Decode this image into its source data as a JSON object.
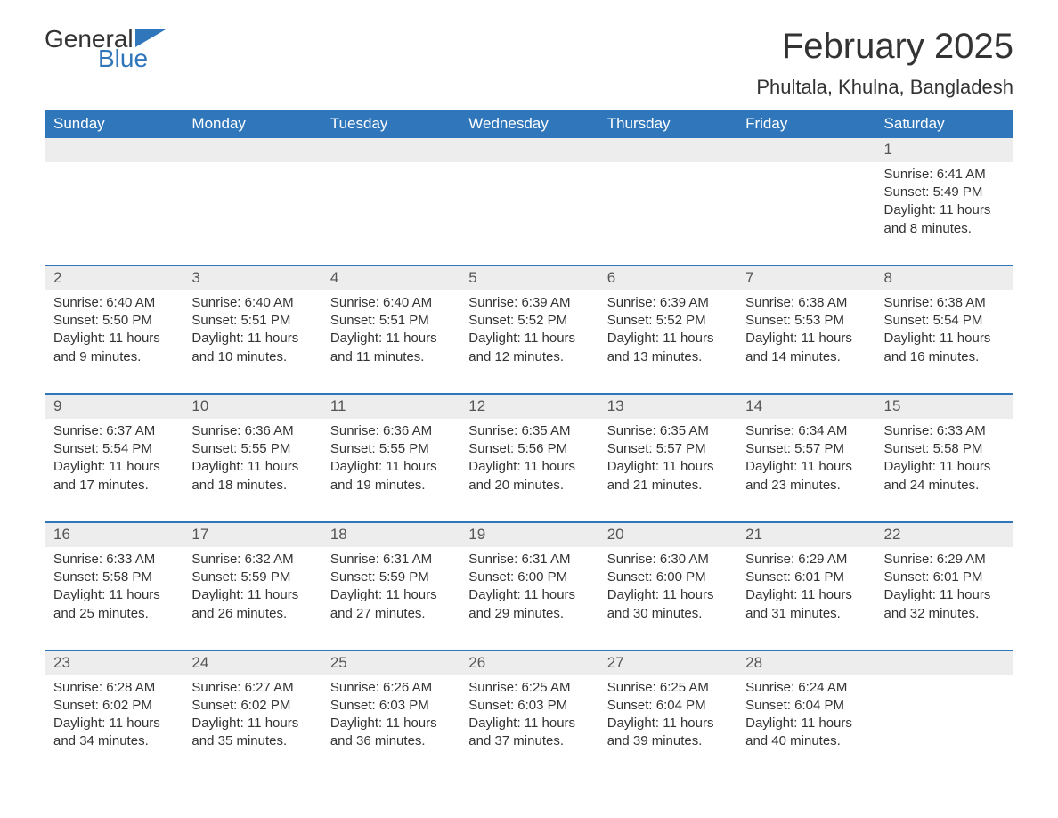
{
  "logo": {
    "text1": "General",
    "text2": "Blue",
    "flag_color": "#2f76bb"
  },
  "title": "February 2025",
  "location": "Phultala, Khulna, Bangladesh",
  "colors": {
    "header_bg": "#2f76bb",
    "header_text": "#ffffff",
    "daynum_bg": "#ededed",
    "row_border": "#2f76bb",
    "body_text": "#333333"
  },
  "typography": {
    "title_fontsize": 40,
    "location_fontsize": 22,
    "weekday_fontsize": 17,
    "cell_fontsize": 15
  },
  "weekdays": [
    "Sunday",
    "Monday",
    "Tuesday",
    "Wednesday",
    "Thursday",
    "Friday",
    "Saturday"
  ],
  "weeks": [
    [
      null,
      null,
      null,
      null,
      null,
      null,
      {
        "n": "1",
        "sunrise": "Sunrise: 6:41 AM",
        "sunset": "Sunset: 5:49 PM",
        "daylight": "Daylight: 11 hours and 8 minutes."
      }
    ],
    [
      {
        "n": "2",
        "sunrise": "Sunrise: 6:40 AM",
        "sunset": "Sunset: 5:50 PM",
        "daylight": "Daylight: 11 hours and 9 minutes."
      },
      {
        "n": "3",
        "sunrise": "Sunrise: 6:40 AM",
        "sunset": "Sunset: 5:51 PM",
        "daylight": "Daylight: 11 hours and 10 minutes."
      },
      {
        "n": "4",
        "sunrise": "Sunrise: 6:40 AM",
        "sunset": "Sunset: 5:51 PM",
        "daylight": "Daylight: 11 hours and 11 minutes."
      },
      {
        "n": "5",
        "sunrise": "Sunrise: 6:39 AM",
        "sunset": "Sunset: 5:52 PM",
        "daylight": "Daylight: 11 hours and 12 minutes."
      },
      {
        "n": "6",
        "sunrise": "Sunrise: 6:39 AM",
        "sunset": "Sunset: 5:52 PM",
        "daylight": "Daylight: 11 hours and 13 minutes."
      },
      {
        "n": "7",
        "sunrise": "Sunrise: 6:38 AM",
        "sunset": "Sunset: 5:53 PM",
        "daylight": "Daylight: 11 hours and 14 minutes."
      },
      {
        "n": "8",
        "sunrise": "Sunrise: 6:38 AM",
        "sunset": "Sunset: 5:54 PM",
        "daylight": "Daylight: 11 hours and 16 minutes."
      }
    ],
    [
      {
        "n": "9",
        "sunrise": "Sunrise: 6:37 AM",
        "sunset": "Sunset: 5:54 PM",
        "daylight": "Daylight: 11 hours and 17 minutes."
      },
      {
        "n": "10",
        "sunrise": "Sunrise: 6:36 AM",
        "sunset": "Sunset: 5:55 PM",
        "daylight": "Daylight: 11 hours and 18 minutes."
      },
      {
        "n": "11",
        "sunrise": "Sunrise: 6:36 AM",
        "sunset": "Sunset: 5:55 PM",
        "daylight": "Daylight: 11 hours and 19 minutes."
      },
      {
        "n": "12",
        "sunrise": "Sunrise: 6:35 AM",
        "sunset": "Sunset: 5:56 PM",
        "daylight": "Daylight: 11 hours and 20 minutes."
      },
      {
        "n": "13",
        "sunrise": "Sunrise: 6:35 AM",
        "sunset": "Sunset: 5:57 PM",
        "daylight": "Daylight: 11 hours and 21 minutes."
      },
      {
        "n": "14",
        "sunrise": "Sunrise: 6:34 AM",
        "sunset": "Sunset: 5:57 PM",
        "daylight": "Daylight: 11 hours and 23 minutes."
      },
      {
        "n": "15",
        "sunrise": "Sunrise: 6:33 AM",
        "sunset": "Sunset: 5:58 PM",
        "daylight": "Daylight: 11 hours and 24 minutes."
      }
    ],
    [
      {
        "n": "16",
        "sunrise": "Sunrise: 6:33 AM",
        "sunset": "Sunset: 5:58 PM",
        "daylight": "Daylight: 11 hours and 25 minutes."
      },
      {
        "n": "17",
        "sunrise": "Sunrise: 6:32 AM",
        "sunset": "Sunset: 5:59 PM",
        "daylight": "Daylight: 11 hours and 26 minutes."
      },
      {
        "n": "18",
        "sunrise": "Sunrise: 6:31 AM",
        "sunset": "Sunset: 5:59 PM",
        "daylight": "Daylight: 11 hours and 27 minutes."
      },
      {
        "n": "19",
        "sunrise": "Sunrise: 6:31 AM",
        "sunset": "Sunset: 6:00 PM",
        "daylight": "Daylight: 11 hours and 29 minutes."
      },
      {
        "n": "20",
        "sunrise": "Sunrise: 6:30 AM",
        "sunset": "Sunset: 6:00 PM",
        "daylight": "Daylight: 11 hours and 30 minutes."
      },
      {
        "n": "21",
        "sunrise": "Sunrise: 6:29 AM",
        "sunset": "Sunset: 6:01 PM",
        "daylight": "Daylight: 11 hours and 31 minutes."
      },
      {
        "n": "22",
        "sunrise": "Sunrise: 6:29 AM",
        "sunset": "Sunset: 6:01 PM",
        "daylight": "Daylight: 11 hours and 32 minutes."
      }
    ],
    [
      {
        "n": "23",
        "sunrise": "Sunrise: 6:28 AM",
        "sunset": "Sunset: 6:02 PM",
        "daylight": "Daylight: 11 hours and 34 minutes."
      },
      {
        "n": "24",
        "sunrise": "Sunrise: 6:27 AM",
        "sunset": "Sunset: 6:02 PM",
        "daylight": "Daylight: 11 hours and 35 minutes."
      },
      {
        "n": "25",
        "sunrise": "Sunrise: 6:26 AM",
        "sunset": "Sunset: 6:03 PM",
        "daylight": "Daylight: 11 hours and 36 minutes."
      },
      {
        "n": "26",
        "sunrise": "Sunrise: 6:25 AM",
        "sunset": "Sunset: 6:03 PM",
        "daylight": "Daylight: 11 hours and 37 minutes."
      },
      {
        "n": "27",
        "sunrise": "Sunrise: 6:25 AM",
        "sunset": "Sunset: 6:04 PM",
        "daylight": "Daylight: 11 hours and 39 minutes."
      },
      {
        "n": "28",
        "sunrise": "Sunrise: 6:24 AM",
        "sunset": "Sunset: 6:04 PM",
        "daylight": "Daylight: 11 hours and 40 minutes."
      },
      null
    ]
  ]
}
